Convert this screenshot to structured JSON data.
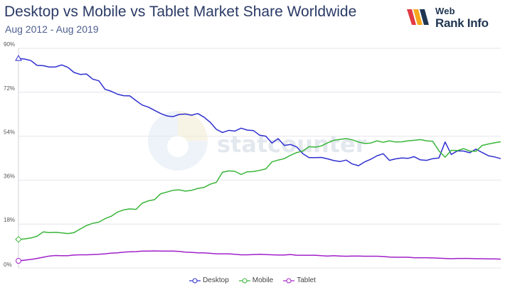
{
  "header": {
    "title": "Desktop vs Mobile vs Tablet Market Share Worldwide",
    "subtitle": "Aug 2012 - Aug 2019"
  },
  "brand": {
    "line1": "Web",
    "line2": "Rank Info",
    "icon": "webrankinfo-logo"
  },
  "watermark": {
    "text": "statcounter",
    "icon": "statcounter-logo"
  },
  "colors": {
    "desktop": "#2f2fd0",
    "mobile": "#39b539",
    "tablet": "#a020c8",
    "grid": "#e4e4ec",
    "axis_text": "#555555",
    "title": "#2a3a66"
  },
  "chart_data": {
    "type": "line",
    "title": "Desktop vs Mobile vs Tablet Market Share Worldwide",
    "subtitle": "Aug 2012 - Aug 2019",
    "x_start": "Aug 2012",
    "x_end": "Aug 2019",
    "y_unit": "%",
    "ylim": [
      0,
      90
    ],
    "y_ticks": [
      "0%",
      "18%",
      "36%",
      "54%",
      "72%",
      "90%"
    ],
    "grid": true,
    "legend_position": "bottom",
    "series": [
      {
        "name": "Desktop",
        "color": "#2f2fd0",
        "marker": "triangle",
        "values": [
          85.9,
          85.6,
          85.0,
          83.0,
          82.9,
          82.3,
          82.4,
          83.2,
          82.2,
          80.1,
          79.3,
          79.5,
          77.4,
          76.7,
          73.2,
          72.4,
          71.2,
          70.6,
          70.5,
          68.6,
          66.8,
          65.9,
          64.6,
          63.3,
          62.3,
          62.0,
          62.9,
          63.1,
          62.6,
          63.3,
          61.8,
          59.7,
          56.8,
          55.5,
          56.4,
          56.1,
          57.3,
          56.5,
          56.3,
          54.4,
          54.0,
          51.2,
          53.0,
          50.2,
          50.6,
          49.6,
          46.8,
          45.2,
          45.2,
          45.3,
          44.7,
          44.0,
          43.6,
          44.2,
          42.6,
          41.9,
          43.5,
          44.6,
          46.0,
          46.8,
          44.1,
          44.7,
          45.1,
          44.9,
          45.6,
          44.3,
          44.1,
          44.8,
          45.1,
          51.6,
          46.5,
          48.0,
          47.9,
          47.2,
          48.7,
          47.3,
          46.0,
          45.5,
          44.8
        ]
      },
      {
        "name": "Mobile",
        "color": "#39b539",
        "marker": "diamond",
        "values": [
          11.7,
          11.9,
          12.3,
          13.0,
          14.8,
          14.5,
          14.6,
          14.4,
          14.1,
          14.5,
          16.0,
          17.4,
          18.3,
          18.8,
          20.2,
          21.2,
          22.9,
          23.8,
          24.2,
          24.0,
          26.5,
          27.5,
          28.0,
          30.4,
          31.1,
          31.8,
          32.0,
          31.5,
          31.8,
          32.6,
          33.0,
          34.3,
          35.1,
          39.2,
          39.8,
          39.6,
          38.3,
          39.4,
          39.5,
          40.0,
          40.6,
          43.5,
          44.2,
          44.8,
          46.2,
          47.3,
          47.9,
          49.7,
          49.5,
          50.0,
          51.3,
          52.3,
          52.7,
          53.0,
          52.5,
          51.6,
          51.0,
          51.2,
          52.1,
          51.5,
          52.1,
          51.6,
          51.7,
          52.1,
          52.3,
          52.6,
          52.1,
          51.9,
          48.0,
          45.4,
          48.2,
          48.1,
          48.9,
          47.9,
          47.8,
          50.2,
          50.8,
          51.3,
          51.7
        ]
      },
      {
        "name": "Tablet",
        "color": "#a020c8",
        "marker": "circle",
        "values": [
          2.9,
          3.2,
          3.5,
          3.9,
          4.4,
          4.9,
          5.1,
          5.0,
          5.0,
          5.3,
          5.4,
          5.4,
          5.5,
          5.6,
          5.8,
          6.1,
          6.2,
          6.5,
          6.6,
          6.7,
          6.9,
          6.9,
          7.0,
          6.9,
          6.9,
          6.9,
          6.8,
          6.5,
          6.4,
          6.2,
          6.2,
          6.0,
          5.8,
          5.8,
          5.8,
          5.6,
          5.4,
          5.4,
          5.5,
          5.6,
          5.5,
          5.4,
          5.3,
          5.3,
          5.5,
          5.2,
          5.2,
          5.2,
          5.2,
          5.0,
          4.9,
          5.0,
          4.9,
          4.8,
          4.9,
          4.9,
          4.8,
          4.8,
          4.8,
          4.7,
          4.5,
          4.4,
          4.4,
          4.4,
          4.2,
          4.2,
          4.2,
          4.1,
          4.0,
          3.9,
          3.8,
          3.9,
          3.9,
          3.9,
          3.8,
          3.8,
          3.7,
          3.7,
          3.6
        ]
      }
    ]
  }
}
